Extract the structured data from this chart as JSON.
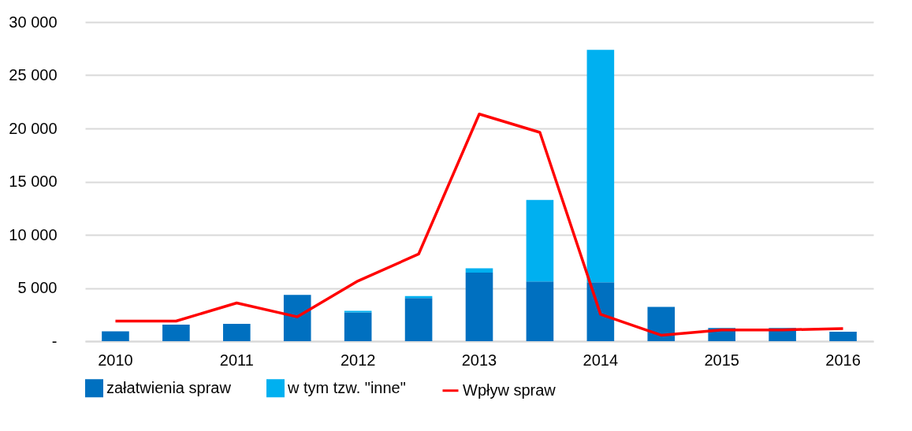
{
  "chart_data": {
    "type": "bar",
    "stacked": true,
    "categories": [
      "2010",
      null,
      "2011",
      null,
      "2012",
      null,
      "2013",
      null,
      "2014",
      null,
      "2015",
      null,
      "2016"
    ],
    "series": [
      {
        "name": "załatwienia spraw",
        "color": "#0070c0",
        "values": [
          920,
          1560,
          1630,
          4360,
          2710,
          4060,
          6440,
          5610,
          5530,
          3230,
          1240,
          1240,
          880
        ]
      },
      {
        "name": "w tym tzw. \"inne\"",
        "color": "#00b0f0",
        "values": [
          null,
          null,
          null,
          null,
          140,
          190,
          410,
          7660,
          21860,
          null,
          null,
          null,
          null
        ]
      },
      {
        "name": "Wpływ spraw",
        "type": "line",
        "color": "#ff0000",
        "values": [
          1890,
          1890,
          3590,
          2290,
          5660,
          8190,
          21350,
          19630,
          2530,
          560,
          1060,
          1060,
          1190
        ]
      }
    ],
    "ylim": [
      0,
      30000
    ],
    "yticks": [
      {
        "value": 0,
        "label": "-"
      },
      {
        "value": 5000,
        "label": "5 000"
      },
      {
        "value": 10000,
        "label": "10 000"
      },
      {
        "value": 15000,
        "label": "15 000"
      },
      {
        "value": 20000,
        "label": "20 000"
      },
      {
        "value": 25000,
        "label": "25 000"
      },
      {
        "value": 30000,
        "label": "30 000"
      }
    ],
    "grid": "y",
    "legend": "bottom"
  }
}
